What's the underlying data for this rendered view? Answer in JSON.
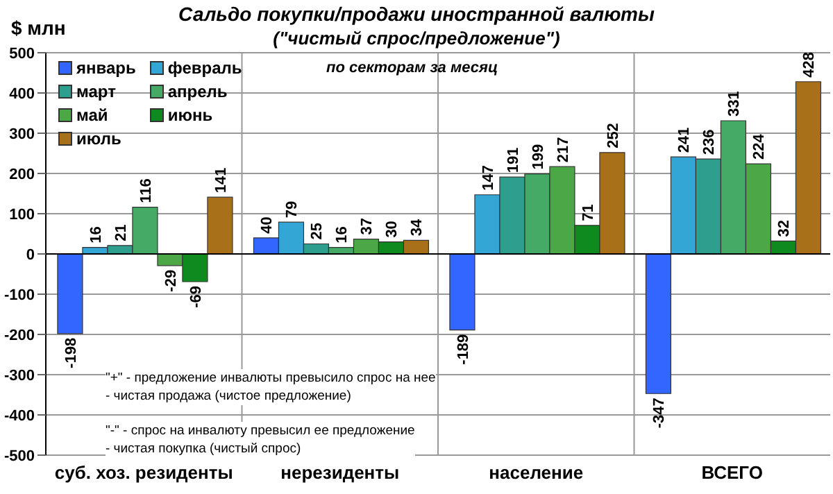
{
  "chart_data": {
    "type": "bar",
    "title": "Сальдо покупки/продажи  иностранной валюты",
    "subtitle": "(\"чистый спрос/предложение\")",
    "ylabel": "$ млн",
    "annotations": [
      "по секторам за месяц",
      "\"+\" - предложение инвалюты превысило спрос  на нее\n- чистая продажа  (чистое предложение)",
      "\"-\" - спрос  на инвалюту превысил ее предложение\n- чистая покупка  (чистый спрос)"
    ],
    "categories": [
      "суб. хоз. резиденты",
      "нерезиденты",
      "население",
      "ВСЕГО"
    ],
    "series": [
      {
        "name": "январь",
        "color": "#3366ff",
        "values": [
          -198,
          40,
          -189,
          -347
        ]
      },
      {
        "name": "февраль",
        "color": "#33a6d6",
        "values": [
          16,
          79,
          147,
          241
        ]
      },
      {
        "name": "март",
        "color": "#2e9e8e",
        "values": [
          21,
          25,
          191,
          236
        ]
      },
      {
        "name": "апрель",
        "color": "#44aa66",
        "values": [
          116,
          16,
          199,
          331
        ]
      },
      {
        "name": "май",
        "color": "#4ca847",
        "values": [
          -29,
          37,
          217,
          224
        ]
      },
      {
        "name": "июнь",
        "color": "#0e8a1e",
        "values": [
          -69,
          30,
          71,
          32
        ]
      },
      {
        "name": "июль",
        "color": "#a87018",
        "values": [
          141,
          34,
          252,
          428
        ]
      }
    ],
    "ylim": [
      -500,
      500
    ],
    "yticks": [
      -500,
      -400,
      -300,
      -200,
      -100,
      0,
      100,
      200,
      300,
      400,
      500
    ],
    "grid": true,
    "legend": "top left",
    "data_labels": true
  }
}
